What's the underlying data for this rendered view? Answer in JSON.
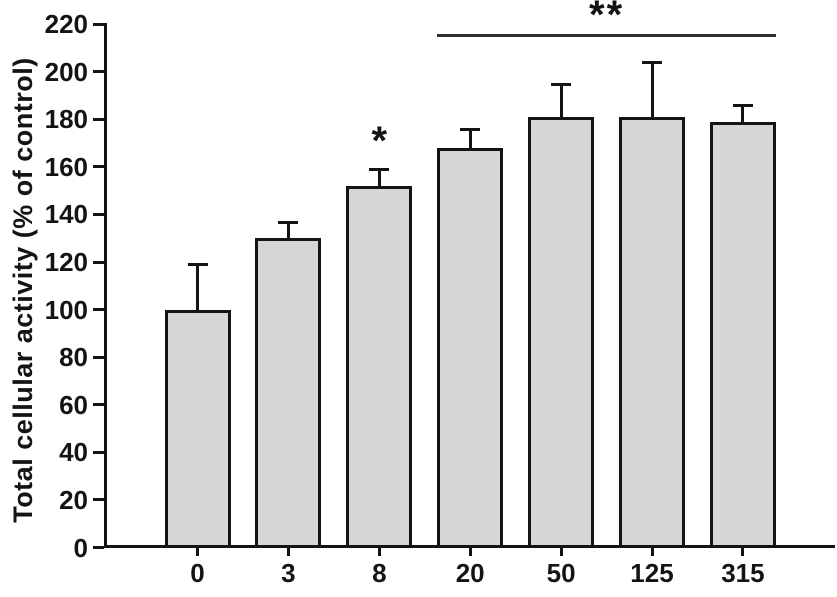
{
  "chart_data": {
    "type": "bar",
    "title": "",
    "ylabel": "Total cellular activity (% of control)",
    "xlabel": "",
    "categories": [
      "0",
      "3",
      "8",
      "20",
      "50",
      "125",
      "315"
    ],
    "values": [
      100,
      130,
      152,
      168,
      181,
      181,
      179
    ],
    "error_plus": [
      19,
      7,
      7,
      8,
      14,
      23,
      7
    ],
    "ylim": [
      0,
      220
    ],
    "yticks": [
      0,
      20,
      40,
      60,
      80,
      100,
      120,
      140,
      160,
      180,
      200,
      220
    ],
    "grid": false,
    "legend": false,
    "bar_fill_color": "#d6d6d6",
    "bar_border_color": "#141414",
    "axis_color": "#141414",
    "annotations": [
      {
        "kind": "star",
        "text": "*",
        "bar_label": "8",
        "bar_index": 2
      },
      {
        "kind": "bracket",
        "text": "**",
        "from_bar": "20",
        "to_bar": "315",
        "from_index": 3,
        "to_index": 6
      }
    ]
  }
}
